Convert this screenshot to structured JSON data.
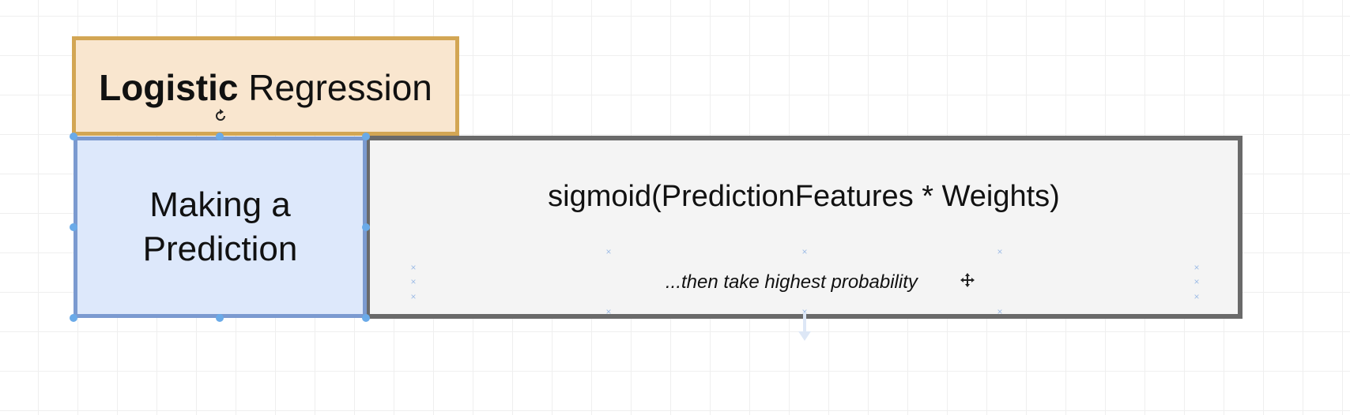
{
  "diagram": {
    "header": {
      "bold_word": "Logistic",
      "regular_word": "Regression"
    },
    "side_label": {
      "line1": "Making a",
      "line2": "Prediction"
    },
    "formula": "sigmoid(PredictionFeatures * Weights)",
    "note": "...then take highest probability"
  },
  "icons": {
    "rotate": "rotate-icon",
    "move": "move-cursor-icon",
    "arrow": "arrow-down-icon"
  },
  "colors": {
    "header_fill": "#f9e6cf",
    "header_border": "#d3a654",
    "label_fill": "#dde8fb",
    "label_border": "#7b9ad0",
    "content_fill": "#f4f4f4",
    "content_border": "#6a6a6a",
    "selection_handle": "#6aaae8"
  }
}
